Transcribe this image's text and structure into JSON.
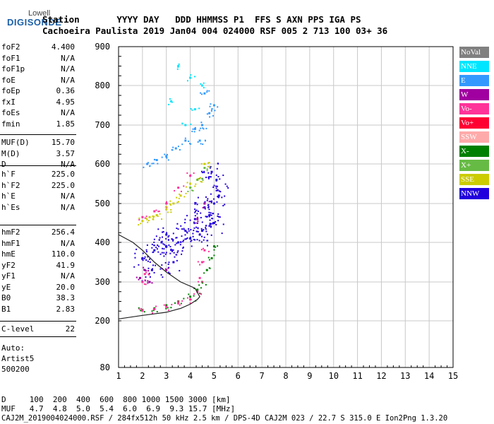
{
  "logo": {
    "line1": "Lowell",
    "line2": "DIGISONDE"
  },
  "header": {
    "line1": "Station       YYYY DAY   DDD HHMMSS P1  FFS S AXN PPS IGA PS",
    "line2": "Cachoeira Paulista 2019 Jan04 004 024000 RSF 005 2 713 100 03+ 36"
  },
  "params": {
    "group1": [
      {
        "k": "foF2",
        "v": "4.400"
      },
      {
        "k": "foF1",
        "v": "N/A"
      },
      {
        "k": "foF1p",
        "v": "N/A"
      },
      {
        "k": "foE",
        "v": "N/A"
      },
      {
        "k": "foEp",
        "v": "0.36"
      },
      {
        "k": "fxI",
        "v": "4.95"
      },
      {
        "k": "foEs",
        "v": "N/A"
      },
      {
        "k": "fmin",
        "v": "1.85"
      }
    ],
    "group2": [
      {
        "k": "MUF(D)",
        "v": "15.70"
      },
      {
        "k": "M(D)",
        "v": "3.57"
      },
      {
        "k": "D",
        "v": "N/A"
      }
    ],
    "group3": [
      {
        "k": "h`F",
        "v": "225.0"
      },
      {
        "k": "h`F2",
        "v": "225.0"
      },
      {
        "k": "h`E",
        "v": "N/A"
      },
      {
        "k": "h`Es",
        "v": "N/A"
      }
    ],
    "group4": [
      {
        "k": "hmF2",
        "v": "256.4"
      },
      {
        "k": "hmF1",
        "v": "N/A"
      },
      {
        "k": "hmE",
        "v": "110.0"
      },
      {
        "k": "yF2",
        "v": "41.9"
      },
      {
        "k": "yF1",
        "v": "N/A"
      },
      {
        "k": "yE",
        "v": "20.0"
      },
      {
        "k": "B0",
        "v": "38.3"
      },
      {
        "k": "B1",
        "v": "2.83"
      }
    ],
    "group5": [
      {
        "k": "C-level",
        "v": "22"
      }
    ],
    "auto": [
      "Auto:",
      "Artist5",
      "500200"
    ]
  },
  "legend": [
    {
      "label": "NoVal",
      "color": "#808080"
    },
    {
      "label": "NNE",
      "color": "#00e5ff"
    },
    {
      "label": "E",
      "color": "#3399ff"
    },
    {
      "label": "W",
      "color": "#a000a0"
    },
    {
      "label": "Vo-",
      "color": "#ff3399"
    },
    {
      "label": "Vo+",
      "color": "#ff0033"
    },
    {
      "label": "SSW",
      "color": "#ffaaaa"
    },
    {
      "label": "X-",
      "color": "#008000"
    },
    {
      "label": "X+",
      "color": "#66bb44"
    },
    {
      "label": "SSE",
      "color": "#cccc00"
    },
    {
      "label": "NNW",
      "color": "#2200dd"
    }
  ],
  "chart_data": {
    "type": "scatter",
    "title": "",
    "xlabel": "",
    "ylabel": "",
    "xlim": [
      1,
      15
    ],
    "ylim": [
      80,
      900
    ],
    "x_ticks": [
      "1",
      "2",
      "3",
      "4",
      "5",
      "6",
      "7",
      "8",
      "9",
      "10",
      "11",
      "12",
      "13",
      "14",
      "15"
    ],
    "y_ticks": [
      "80",
      "200",
      "300",
      "400",
      "500",
      "600",
      "700",
      "800",
      "900"
    ],
    "y_tick_values": [
      80,
      200,
      300,
      400,
      500,
      600,
      700,
      800,
      900
    ],
    "grid": true,
    "series": [
      {
        "name": "NNW",
        "points": [
          [
            2.0,
            360
          ],
          [
            2.5,
            380
          ],
          [
            3.0,
            390
          ],
          [
            3.5,
            400
          ],
          [
            4.0,
            410
          ],
          [
            4.5,
            430
          ],
          [
            4.8,
            470
          ],
          [
            5.0,
            500
          ],
          [
            5.2,
            520
          ],
          [
            3.0,
            420
          ],
          [
            3.8,
            430
          ],
          [
            4.2,
            460
          ],
          [
            4.6,
            490
          ],
          [
            5.1,
            560
          ],
          [
            4.9,
            580
          ],
          [
            2.4,
            330
          ],
          [
            3.3,
            350
          ],
          [
            2.8,
            400
          ],
          [
            4.4,
            420
          ],
          [
            5.0,
            450
          ]
        ]
      },
      {
        "name": "X-",
        "points": [
          [
            2.0,
            228
          ],
          [
            2.5,
            232
          ],
          [
            3.0,
            240
          ],
          [
            3.5,
            250
          ],
          [
            4.0,
            262
          ],
          [
            4.3,
            280
          ],
          [
            4.5,
            300
          ],
          [
            4.7,
            330
          ],
          [
            4.9,
            360
          ],
          [
            5.0,
            390
          ]
        ]
      },
      {
        "name": "Vo-",
        "points": [
          [
            2.0,
            226
          ],
          [
            2.5,
            230
          ],
          [
            3.0,
            236
          ],
          [
            3.5,
            245
          ],
          [
            4.0,
            255
          ],
          [
            4.3,
            275
          ],
          [
            4.4,
            310
          ],
          [
            4.5,
            350
          ],
          [
            4.6,
            380
          ],
          [
            2.0,
            300
          ],
          [
            2.1,
            320
          ],
          [
            2.0,
            465
          ],
          [
            2.5,
            480
          ],
          [
            3.0,
            500
          ],
          [
            3.5,
            540
          ],
          [
            4.0,
            570
          ]
        ]
      },
      {
        "name": "W",
        "points": [
          [
            1.9,
            310
          ],
          [
            2.1,
            330
          ],
          [
            2.3,
            300
          ],
          [
            3.0,
            330
          ],
          [
            4.3,
            460
          ],
          [
            4.6,
            500
          ]
        ]
      },
      {
        "name": "E",
        "points": [
          [
            2.2,
            600
          ],
          [
            2.6,
            610
          ],
          [
            3.0,
            620
          ],
          [
            3.4,
            640
          ],
          [
            3.8,
            660
          ],
          [
            4.2,
            690
          ],
          [
            4.5,
            700
          ],
          [
            4.8,
            730
          ],
          [
            5.0,
            750
          ],
          [
            4.6,
            780
          ],
          [
            4.4,
            660
          ]
        ]
      },
      {
        "name": "SSE",
        "points": [
          [
            2.0,
            455
          ],
          [
            2.3,
            465
          ],
          [
            2.6,
            470
          ],
          [
            3.0,
            485
          ],
          [
            3.3,
            500
          ],
          [
            3.6,
            520
          ],
          [
            4.0,
            550
          ],
          [
            4.3,
            560
          ],
          [
            4.6,
            600
          ]
        ]
      },
      {
        "name": "NNE",
        "points": [
          [
            3.5,
            850
          ],
          [
            4.0,
            820
          ],
          [
            4.5,
            800
          ],
          [
            4.2,
            740
          ],
          [
            3.8,
            700
          ],
          [
            3.2,
            760
          ]
        ]
      },
      {
        "name": "X+",
        "points": [
          [
            4.0,
            540
          ],
          [
            4.3,
            560
          ],
          [
            4.6,
            590
          ]
        ]
      }
    ],
    "profile_curve": [
      [
        1.0,
        205
      ],
      [
        2.0,
        214
      ],
      [
        3.0,
        222
      ],
      [
        3.6,
        232
      ],
      [
        4.0,
        243
      ],
      [
        4.3,
        255
      ],
      [
        4.4,
        262
      ],
      [
        4.2,
        284
      ],
      [
        3.6,
        300
      ],
      [
        3.0,
        325
      ],
      [
        2.5,
        350
      ],
      [
        2.0,
        380
      ],
      [
        1.6,
        400
      ],
      [
        1.0,
        420
      ]
    ]
  },
  "footer": {
    "line1": "D     100  200  400  600  800 1000 1500 3000 [km]",
    "line2": "MUF   4.7  4.8  5.0  5.4  6.0  6.9  9.3 15.7 [MHz]",
    "line3": "CAJ2M_2019004024000.RSF / 284fx512h 50 kHz 2.5 km / DPS-4D CAJ2M 023 / 22.7 S 315.0 E Ion2Png 1.3.20"
  }
}
